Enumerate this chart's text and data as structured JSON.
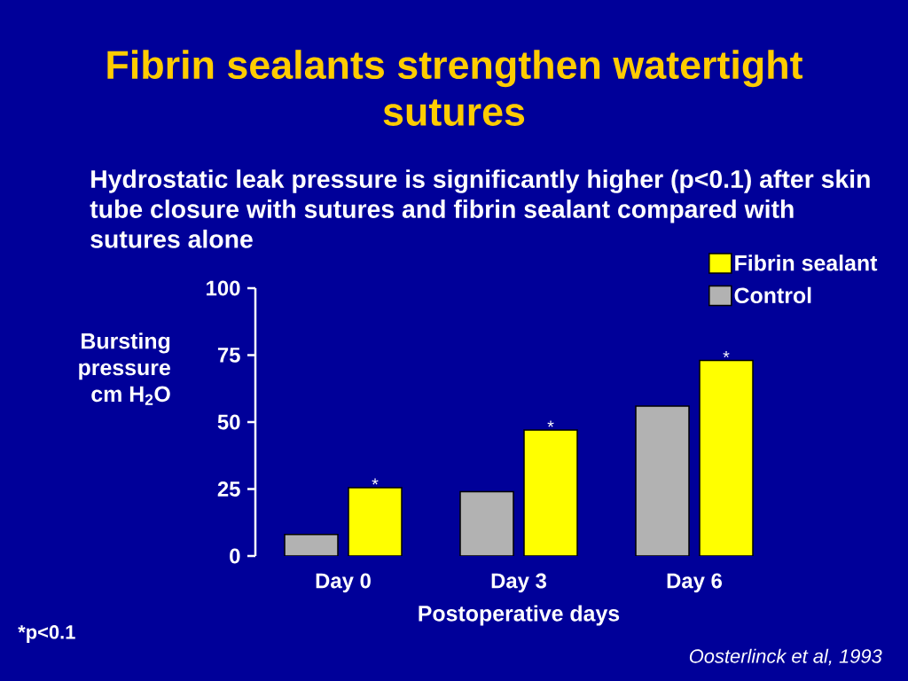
{
  "chart_data": {
    "type": "bar",
    "title": "Fibrin sealants strengthen watertight sutures",
    "subtitle": "Hydrostatic leak pressure is significantly higher (p<0.1) after skin tube closure with sutures and fibrin sealant compared with sutures alone",
    "xlabel": "Postoperative days",
    "ylabel": "Bursting pressure cm H$_{2}$O",
    "categories": [
      "Day 0",
      "Day 3",
      "Day 6"
    ],
    "series": [
      {
        "name": "Control",
        "color": "#b2b2b2",
        "values": [
          8,
          24,
          56
        ]
      },
      {
        "name": "Fibrin sealant",
        "color": "#ffff00",
        "values": [
          25.5,
          47,
          73
        ],
        "value_labels": [
          "*",
          "*",
          "*"
        ]
      }
    ],
    "ylim": [
      0,
      100
    ],
    "yticks": [
      0,
      25,
      50,
      75,
      100
    ],
    "legend": "top right",
    "annotations": [
      "*p<0.1",
      "Oosterlinck et al, 1993"
    ]
  }
}
